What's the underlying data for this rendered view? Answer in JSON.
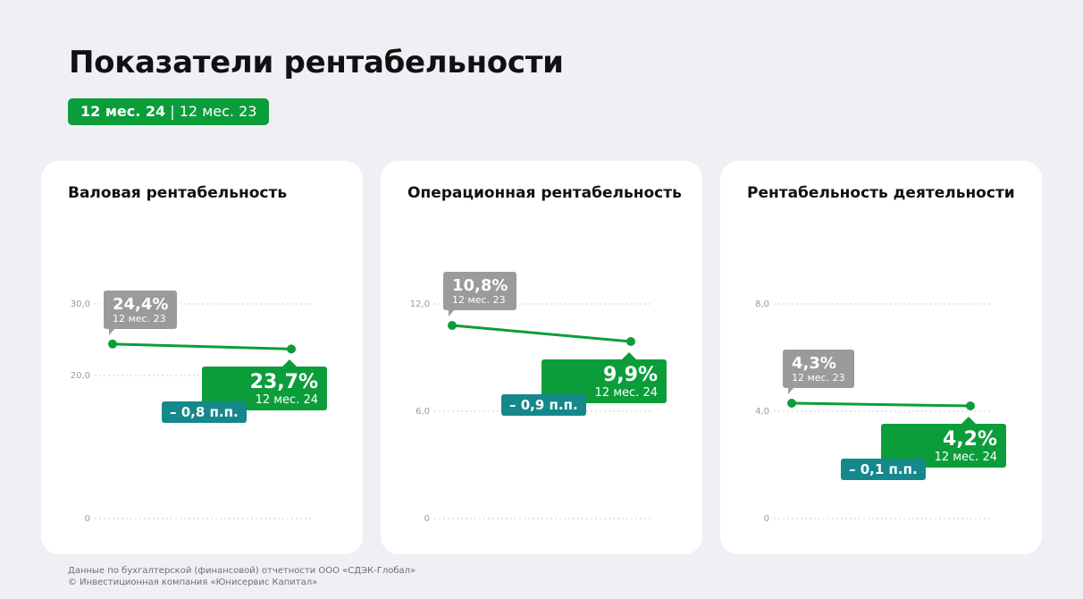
{
  "title": "Показатели рентабельности",
  "period_badge": {
    "current": "12 мес. 24",
    "separator": "|",
    "previous": "12 мес. 23"
  },
  "footer": {
    "source": "Данные по бухгалтерской (финансовой) отчетности ООО «СДЭК-Глобал»",
    "copyright": "© Инвестиционная компания «Юнисервис Капитал»"
  },
  "colors": {
    "accent_green": "#0c9d3b",
    "previous_gray": "#9b9b9b",
    "delta_teal": "#15888c",
    "background": "#efeff5"
  },
  "chart_data": [
    {
      "type": "line",
      "title": "Валовая рентабельность",
      "x": [
        "12 мес. 23",
        "12 мес. 24"
      ],
      "values": [
        24.4,
        23.7
      ],
      "ylim": [
        0,
        30
      ],
      "yticks": [
        0,
        20,
        30
      ],
      "ytick_labels": [
        "0",
        "20,0",
        "30,0"
      ],
      "prev_label": {
        "value": "24,4%",
        "period": "12 мес. 23"
      },
      "cur_label": {
        "value": "23,7%",
        "period": "12 мес. 24"
      },
      "delta": "– 0,8 п.п.",
      "grid": true
    },
    {
      "type": "line",
      "title": "Операционная рентабельность",
      "x": [
        "12 мес. 23",
        "12 мес. 24"
      ],
      "values": [
        10.8,
        9.9
      ],
      "ylim": [
        0,
        12
      ],
      "yticks": [
        0,
        6,
        12
      ],
      "ytick_labels": [
        "0",
        "6,0",
        "12,0"
      ],
      "prev_label": {
        "value": "10,8%",
        "period": "12 мес. 23"
      },
      "cur_label": {
        "value": "9,9%",
        "period": "12 мес. 24"
      },
      "delta": "– 0,9 п.п.",
      "grid": true
    },
    {
      "type": "line",
      "title": "Рентабельность деятельности",
      "x": [
        "12 мес. 23",
        "12 мес. 24"
      ],
      "values": [
        4.3,
        4.2
      ],
      "ylim": [
        0,
        8
      ],
      "yticks": [
        0,
        4,
        8
      ],
      "ytick_labels": [
        "0",
        "4,0",
        "8,0"
      ],
      "prev_label": {
        "value": "4,3%",
        "period": "12 мес. 23"
      },
      "cur_label": {
        "value": "4,2%",
        "period": "12 мес. 24"
      },
      "delta": "– 0,1 п.п.",
      "grid": true
    }
  ]
}
